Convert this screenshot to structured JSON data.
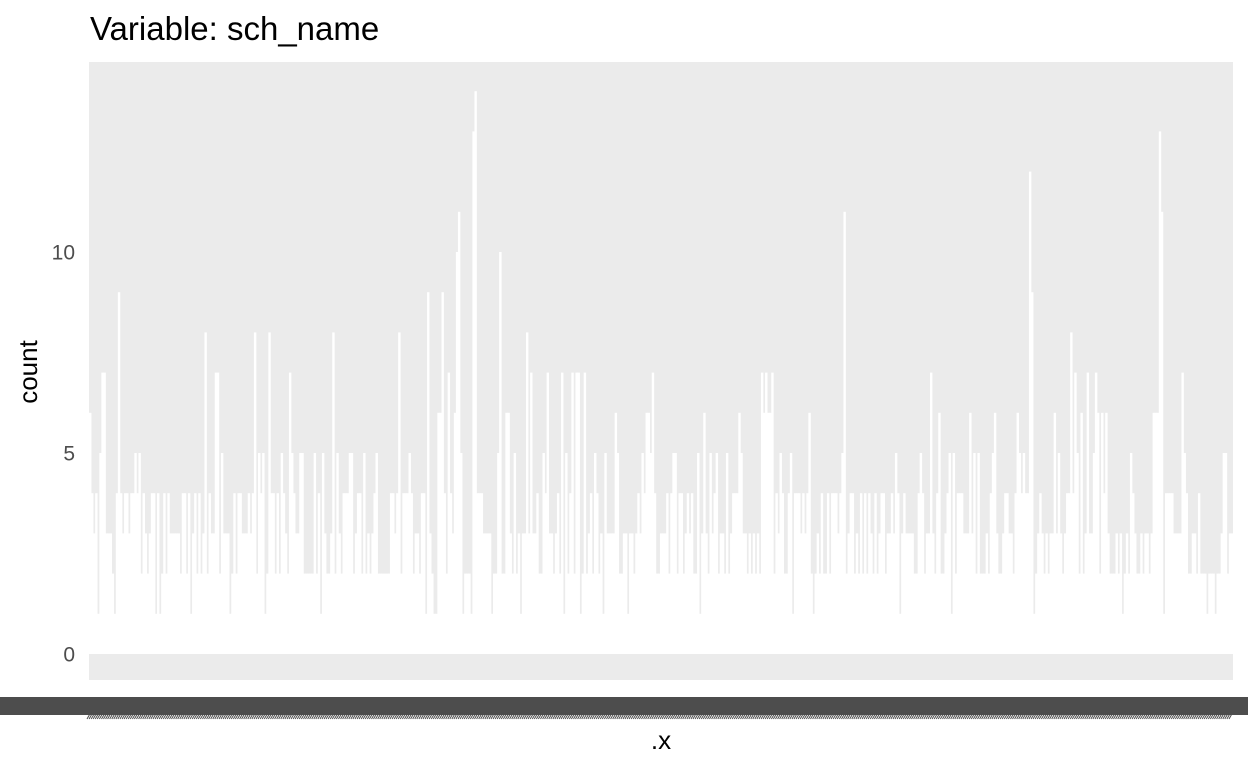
{
  "chart_data": {
    "type": "bar",
    "title": "Variable: sch_name",
    "xlabel": ".x",
    "ylabel": "count",
    "yticks": [
      0,
      5,
      10
    ],
    "ylim": [
      0,
      14.2
    ],
    "grid": false,
    "panel_background": "#ebebeb",
    "bar_color": "#ffffff",
    "tick_label_color": "#4d4d4d",
    "values": [
      6,
      4,
      3,
      4,
      1,
      5,
      7,
      7,
      3,
      3,
      3,
      2,
      1,
      4,
      9,
      4,
      3,
      4,
      4,
      3,
      4,
      4,
      5,
      4,
      5,
      2,
      4,
      3,
      2,
      3,
      4,
      4,
      1,
      4,
      1,
      2,
      4,
      2,
      4,
      3,
      3,
      3,
      3,
      3,
      2,
      4,
      4,
      2,
      4,
      1,
      3,
      4,
      2,
      4,
      2,
      3,
      8,
      2,
      4,
      3,
      3,
      7,
      7,
      2,
      5,
      3,
      3,
      3,
      1,
      2,
      4,
      2,
      4,
      4,
      3,
      3,
      3,
      4,
      3,
      4,
      8,
      2,
      5,
      4,
      5,
      1,
      2,
      8,
      4,
      4,
      2,
      4,
      2,
      5,
      4,
      3,
      2,
      7,
      5,
      4,
      3,
      3,
      5,
      5,
      2,
      2,
      2,
      2,
      2,
      5,
      2,
      4,
      1,
      5,
      3,
      2,
      2,
      3,
      8,
      2,
      5,
      3,
      2,
      4,
      4,
      4,
      5,
      5,
      2,
      3,
      4,
      4,
      2,
      5,
      2,
      3,
      2,
      3,
      4,
      5,
      2,
      2,
      2,
      2,
      2,
      2,
      4,
      4,
      3,
      4,
      8,
      2,
      4,
      4,
      4,
      5,
      4,
      2,
      3,
      3,
      2,
      4,
      4,
      1,
      9,
      3,
      2,
      1,
      1,
      6,
      6,
      9,
      4,
      2,
      7,
      4,
      3,
      6,
      10,
      11,
      5,
      1,
      2,
      2,
      2,
      1,
      13,
      14,
      4,
      4,
      4,
      3,
      3,
      3,
      3,
      1,
      2,
      2,
      5,
      10,
      2,
      2,
      6,
      6,
      3,
      2,
      5,
      2,
      3,
      1,
      3,
      3,
      8,
      3,
      7,
      3,
      3,
      4,
      2,
      2,
      5,
      4,
      7,
      3,
      3,
      2,
      3,
      4,
      2,
      7,
      1,
      5,
      2,
      4,
      7,
      2,
      7,
      7,
      1,
      2,
      7,
      2,
      3,
      4,
      2,
      5,
      4,
      2,
      3,
      1,
      5,
      3,
      3,
      3,
      3,
      6,
      5,
      2,
      2,
      3,
      3,
      1,
      3,
      3,
      2,
      3,
      4,
      3,
      5,
      4,
      6,
      6,
      5,
      7,
      4,
      2,
      2,
      3,
      3,
      3,
      4,
      2,
      4,
      5,
      5,
      2,
      4,
      4,
      2,
      3,
      4,
      3,
      4,
      2,
      2,
      5,
      1,
      3,
      6,
      3,
      2,
      5,
      3,
      4,
      5,
      2,
      3,
      3,
      2,
      5,
      2,
      3,
      4,
      4,
      4,
      6,
      5,
      3,
      3,
      2,
      3,
      2,
      3,
      2,
      3,
      2,
      7,
      6,
      7,
      6,
      6,
      7,
      2,
      4,
      3,
      5,
      4,
      2,
      2,
      4,
      5,
      1,
      4,
      4,
      4,
      3,
      4,
      3,
      4,
      6,
      2,
      1,
      2,
      3,
      2,
      4,
      2,
      2,
      4,
      2,
      4,
      4,
      4,
      3,
      4,
      5,
      11,
      2,
      3,
      4,
      4,
      2,
      3,
      2,
      4,
      2,
      4,
      2,
      4,
      3,
      2,
      4,
      2,
      3,
      4,
      4,
      2,
      3,
      3,
      4,
      3,
      5,
      4,
      1,
      3,
      4,
      3,
      3,
      3,
      3,
      2,
      2,
      4,
      5,
      4,
      2,
      3,
      3,
      7,
      3,
      2,
      4,
      6,
      2,
      2,
      3,
      4,
      5,
      1,
      5,
      2,
      4,
      4,
      4,
      3,
      3,
      3,
      6,
      3,
      5,
      2,
      5,
      2,
      2,
      2,
      3,
      2,
      4,
      5,
      6,
      3,
      2,
      2,
      3,
      4,
      4,
      3,
      3,
      2,
      4,
      6,
      5,
      4,
      5,
      4,
      4,
      12,
      9,
      1,
      2,
      3,
      4,
      3,
      2,
      3,
      2,
      3,
      3,
      6,
      3,
      5,
      3,
      2,
      3,
      4,
      4,
      8,
      4,
      7,
      5,
      2,
      6,
      2,
      3,
      7,
      3,
      3,
      5,
      7,
      6,
      2,
      6,
      4,
      6,
      3,
      2,
      2,
      2,
      3,
      2,
      3,
      1,
      2,
      3,
      2,
      5,
      4,
      3,
      2,
      2,
      3,
      2,
      3,
      3,
      2,
      3,
      6,
      6,
      6,
      13,
      11,
      1,
      4,
      4,
      4,
      4,
      3,
      3,
      3,
      3,
      7,
      5,
      4,
      2,
      2,
      3,
      3,
      2,
      4,
      2,
      2,
      2,
      1,
      2,
      2,
      2,
      1,
      2,
      2,
      3,
      5,
      5,
      2,
      3,
      3
    ]
  }
}
